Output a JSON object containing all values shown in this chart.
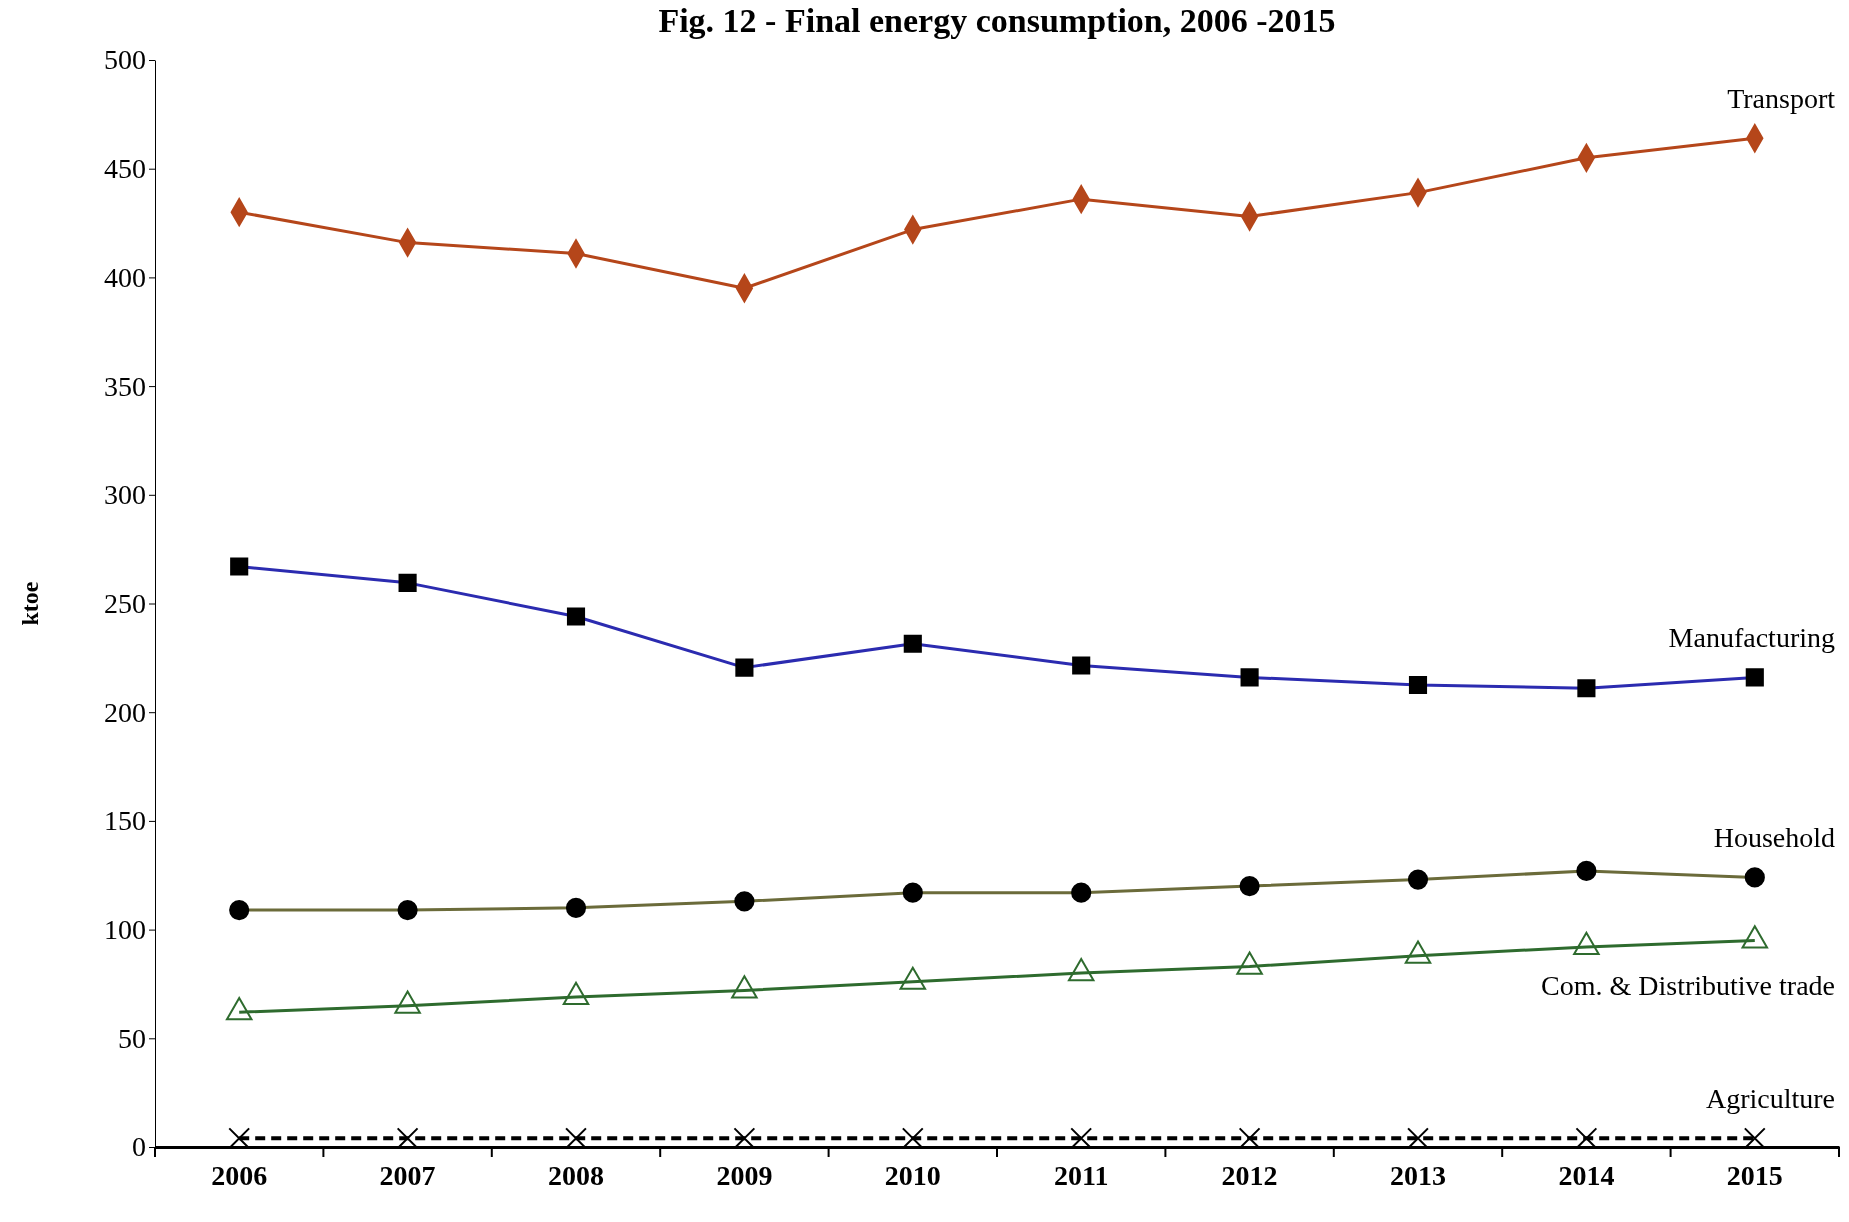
{
  "chart_data": {
    "type": "line",
    "title": "Fig. 12 - Final energy consumption, 2006 -2015",
    "ylabel": "ktoe",
    "categories": [
      "2006",
      "2007",
      "2008",
      "2009",
      "2010",
      "2011",
      "2012",
      "2013",
      "2014",
      "2015"
    ],
    "ylim": [
      0,
      500
    ],
    "yticks": [
      0,
      50,
      100,
      150,
      200,
      250,
      300,
      350,
      400,
      450,
      500
    ],
    "grid": false,
    "legend": false,
    "series": [
      {
        "name": "Transport",
        "color": "#b5461a",
        "marker": "diamond",
        "line_style": "solid",
        "values": [
          430,
          416,
          411,
          395,
          422,
          436,
          428,
          439,
          455,
          464
        ]
      },
      {
        "name": "Manufacturing",
        "color": "#2b2bb0",
        "marker": "square",
        "line_style": "solid",
        "values": [
          267,
          259.5,
          244,
          220.5,
          231.5,
          221.5,
          216,
          212.5,
          211,
          216
        ]
      },
      {
        "name": "Household",
        "color": "#6b6b3a",
        "marker": "circle",
        "line_style": "solid",
        "values": [
          109,
          109,
          110,
          113,
          117,
          117,
          120,
          123,
          127,
          124
        ]
      },
      {
        "name": "Com. & Distributive trade",
        "color": "#2e6b2e",
        "marker": "triangle",
        "line_style": "solid",
        "values": [
          62,
          65,
          69,
          72,
          76,
          80,
          83,
          88,
          92,
          95
        ]
      },
      {
        "name": "Agriculture",
        "color": "#000000",
        "marker": "cross",
        "line_style": "dashed",
        "values": [
          4,
          4,
          4,
          4,
          4,
          4,
          4,
          4,
          4,
          4
        ]
      }
    ]
  }
}
